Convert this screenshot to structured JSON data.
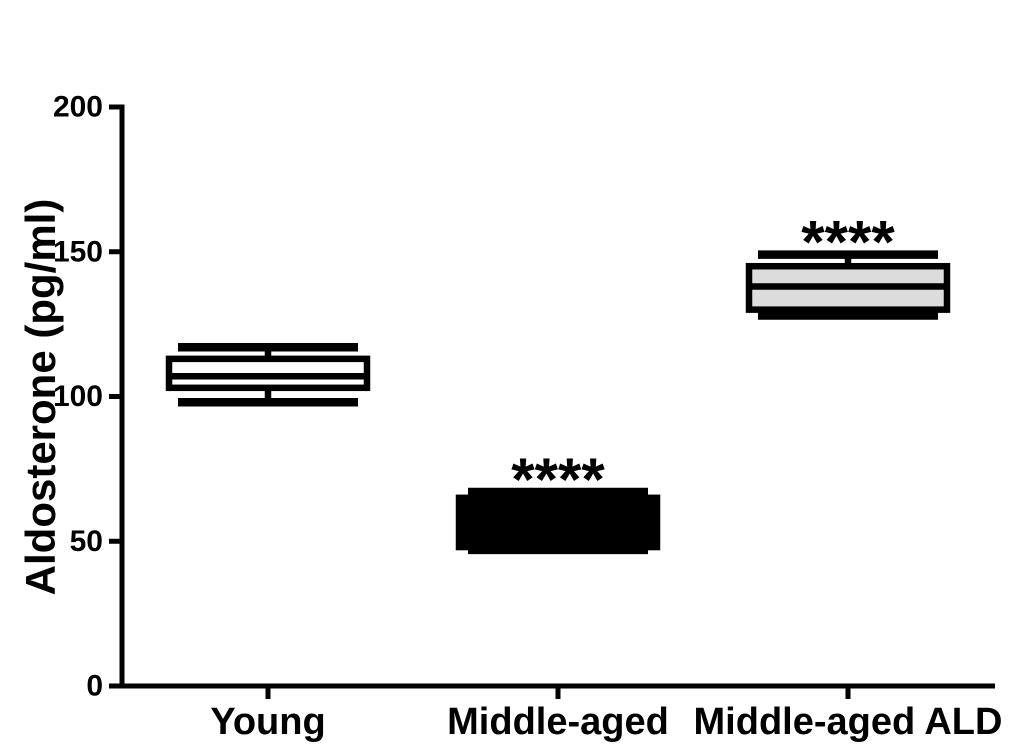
{
  "chart_data": {
    "type": "boxplot",
    "title": "",
    "ylabel": "Aldosterone (pg/ml)",
    "xlabel": "",
    "ylim": [
      0,
      200
    ],
    "yticks": [
      0,
      50,
      100,
      150,
      200
    ],
    "ytick_labels": [
      "0",
      "50",
      "100",
      "150",
      "200"
    ],
    "grid": false,
    "legend": false,
    "categories": [
      "Young",
      "Middle-aged",
      "Middle-aged ALD"
    ],
    "series": [
      {
        "name": "Young",
        "whisker_low": 98,
        "q1": 103,
        "median": 107,
        "q3": 113,
        "whisker_high": 117,
        "box_fill": "#ffffff",
        "significance": null
      },
      {
        "name": "Middle-aged",
        "whisker_low": 47,
        "q1": 48,
        "median": null,
        "q3": 65,
        "whisker_high": 67,
        "box_fill": "#000000",
        "significance": "****"
      },
      {
        "name": "Middle-aged ALD",
        "whisker_low": 128,
        "q1": 130,
        "median": 138,
        "q3": 145,
        "whisker_high": 149,
        "box_fill": "#dcdcdc",
        "significance": "****"
      }
    ],
    "colors": {
      "axis": "#000000",
      "text": "#000000",
      "background": "#ffffff"
    }
  }
}
